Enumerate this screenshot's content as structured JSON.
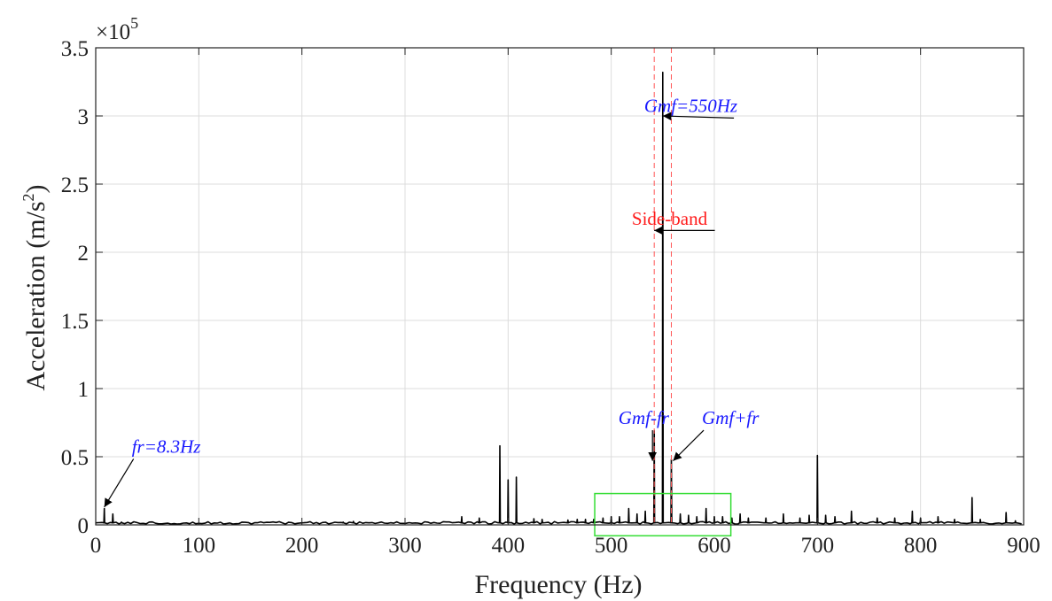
{
  "chart_data": {
    "type": "line",
    "title": "",
    "xlabel": "Frequency (Hz)",
    "ylabel_main": "Acceleration (m/s",
    "ylabel_sup": "2",
    "ylabel_end": ")",
    "xlim": [
      0,
      900
    ],
    "ylim": [
      0,
      350000
    ],
    "y_scale_factor_base": "×10",
    "y_scale_factor_exp": "5",
    "x_ticks": [
      0,
      100,
      200,
      300,
      400,
      500,
      600,
      700,
      800,
      900
    ],
    "y_ticks": [
      0,
      0.5,
      1,
      1.5,
      2,
      2.5,
      3,
      3.5
    ],
    "y_tick_labels": [
      "0",
      "0.5",
      "1",
      "1.5",
      "2",
      "2.5",
      "3",
      "3.5"
    ],
    "grid": true,
    "series": [
      {
        "color": "#000000",
        "noise_floor": 1500,
        "peaks": [
          {
            "x": 8.3,
            "y": 12000
          },
          {
            "x": 16.6,
            "y": 8000
          },
          {
            "x": 25,
            "y": 2000
          },
          {
            "x": 240,
            "y": 2000
          },
          {
            "x": 250,
            "y": 2500
          },
          {
            "x": 355,
            "y": 6000
          },
          {
            "x": 372,
            "y": 5000
          },
          {
            "x": 392,
            "y": 58000
          },
          {
            "x": 400,
            "y": 33000
          },
          {
            "x": 408,
            "y": 35000
          },
          {
            "x": 425,
            "y": 4500
          },
          {
            "x": 433,
            "y": 4000
          },
          {
            "x": 458,
            "y": 3500
          },
          {
            "x": 467,
            "y": 4000
          },
          {
            "x": 475,
            "y": 4000
          },
          {
            "x": 483,
            "y": 4000
          },
          {
            "x": 492,
            "y": 5000
          },
          {
            "x": 500,
            "y": 6000
          },
          {
            "x": 508,
            "y": 6000
          },
          {
            "x": 517,
            "y": 12000
          },
          {
            "x": 525,
            "y": 8000
          },
          {
            "x": 533,
            "y": 10000
          },
          {
            "x": 541.7,
            "y": 69000
          },
          {
            "x": 550,
            "y": 332000
          },
          {
            "x": 558.3,
            "y": 48000
          },
          {
            "x": 567,
            "y": 8000
          },
          {
            "x": 575,
            "y": 7000
          },
          {
            "x": 583,
            "y": 6000
          },
          {
            "x": 592,
            "y": 12000
          },
          {
            "x": 600,
            "y": 6000
          },
          {
            "x": 608,
            "y": 6000
          },
          {
            "x": 617,
            "y": 5000
          },
          {
            "x": 625,
            "y": 8000
          },
          {
            "x": 633,
            "y": 5000
          },
          {
            "x": 650,
            "y": 5000
          },
          {
            "x": 667,
            "y": 8000
          },
          {
            "x": 683,
            "y": 5000
          },
          {
            "x": 692,
            "y": 7000
          },
          {
            "x": 700,
            "y": 51000
          },
          {
            "x": 708,
            "y": 7000
          },
          {
            "x": 717,
            "y": 6000
          },
          {
            "x": 733,
            "y": 10000
          },
          {
            "x": 758,
            "y": 5000
          },
          {
            "x": 775,
            "y": 5000
          },
          {
            "x": 792,
            "y": 10000
          },
          {
            "x": 800,
            "y": 5000
          },
          {
            "x": 817,
            "y": 6000
          },
          {
            "x": 833,
            "y": 4000
          },
          {
            "x": 850,
            "y": 20000
          },
          {
            "x": 858,
            "y": 4000
          },
          {
            "x": 883,
            "y": 9000
          },
          {
            "x": 892,
            "y": 3000
          }
        ]
      }
    ],
    "sideband_lines_x": [
      541.7,
      558.3
    ],
    "highlight_box": {
      "x0": 484,
      "x1": 616,
      "y0": -8000,
      "y1": 23000,
      "color": "#33dd33"
    },
    "annotations": [
      {
        "text": "Gmf=550Hz",
        "x": 532,
        "y": 303000,
        "arrow_to": [
          550,
          300000
        ],
        "color": "#1a1aff"
      },
      {
        "text": "Side-band",
        "x": 520,
        "y": 220000,
        "arrow_to": [
          541.7,
          216000
        ],
        "color": "#ff1a1a"
      },
      {
        "text": "Gmf-fr",
        "x": 507,
        "y": 74000,
        "arrow_to": [
          540,
          47000
        ],
        "color": "#1a1aff"
      },
      {
        "text": "Gmf+fr",
        "x": 588,
        "y": 74000,
        "arrow_to": [
          560,
          47000
        ],
        "color": "#1a1aff"
      },
      {
        "text": "fr=8.3Hz",
        "x": 35,
        "y": 53000,
        "arrow_to": [
          8.3,
          13000
        ],
        "color": "#1a1aff"
      }
    ]
  }
}
